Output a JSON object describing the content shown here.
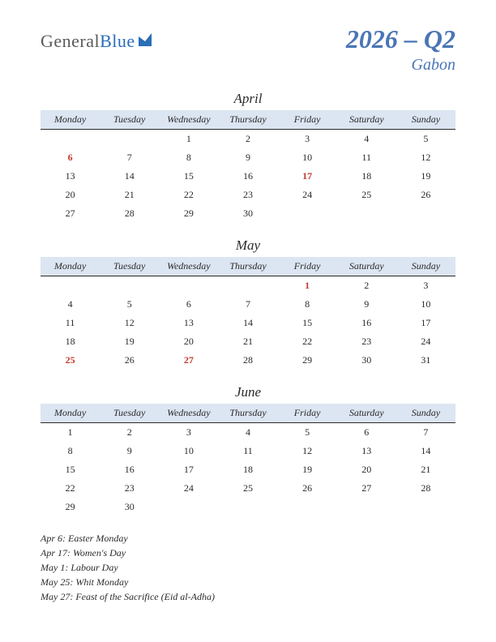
{
  "logo": {
    "text1": "General",
    "text2": "Blue"
  },
  "title": "2026 – Q2",
  "country": "Gabon",
  "day_headers": [
    "Monday",
    "Tuesday",
    "Wednesday",
    "Thursday",
    "Friday",
    "Saturday",
    "Sunday"
  ],
  "header_bg": "#dce5f2",
  "header_border": "#2a2a2a",
  "holiday_color": "#c0392b",
  "accent_color": "#4a75b5",
  "months": [
    {
      "name": "April",
      "weeks": [
        [
          "",
          "",
          "1",
          "2",
          "3",
          "4",
          "5"
        ],
        [
          "6",
          "7",
          "8",
          "9",
          "10",
          "11",
          "12"
        ],
        [
          "13",
          "14",
          "15",
          "16",
          "17",
          "18",
          "19"
        ],
        [
          "20",
          "21",
          "22",
          "23",
          "24",
          "25",
          "26"
        ],
        [
          "27",
          "28",
          "29",
          "30",
          "",
          "",
          ""
        ]
      ],
      "holidays": [
        "6",
        "17"
      ]
    },
    {
      "name": "May",
      "weeks": [
        [
          "",
          "",
          "",
          "",
          "1",
          "2",
          "3"
        ],
        [
          "4",
          "5",
          "6",
          "7",
          "8",
          "9",
          "10"
        ],
        [
          "11",
          "12",
          "13",
          "14",
          "15",
          "16",
          "17"
        ],
        [
          "18",
          "19",
          "20",
          "21",
          "22",
          "23",
          "24"
        ],
        [
          "25",
          "26",
          "27",
          "28",
          "29",
          "30",
          "31"
        ]
      ],
      "holidays": [
        "1",
        "25",
        "27"
      ]
    },
    {
      "name": "June",
      "weeks": [
        [
          "1",
          "2",
          "3",
          "4",
          "5",
          "6",
          "7"
        ],
        [
          "8",
          "9",
          "10",
          "11",
          "12",
          "13",
          "14"
        ],
        [
          "15",
          "16",
          "17",
          "18",
          "19",
          "20",
          "21"
        ],
        [
          "22",
          "23",
          "24",
          "25",
          "26",
          "27",
          "28"
        ],
        [
          "29",
          "30",
          "",
          "",
          "",
          "",
          ""
        ]
      ],
      "holidays": []
    }
  ],
  "holiday_list": [
    "Apr 6: Easter Monday",
    "Apr 17: Women's Day",
    "May 1: Labour Day",
    "May 25: Whit Monday",
    "May 27: Feast of the Sacrifice (Eid al-Adha)"
  ]
}
